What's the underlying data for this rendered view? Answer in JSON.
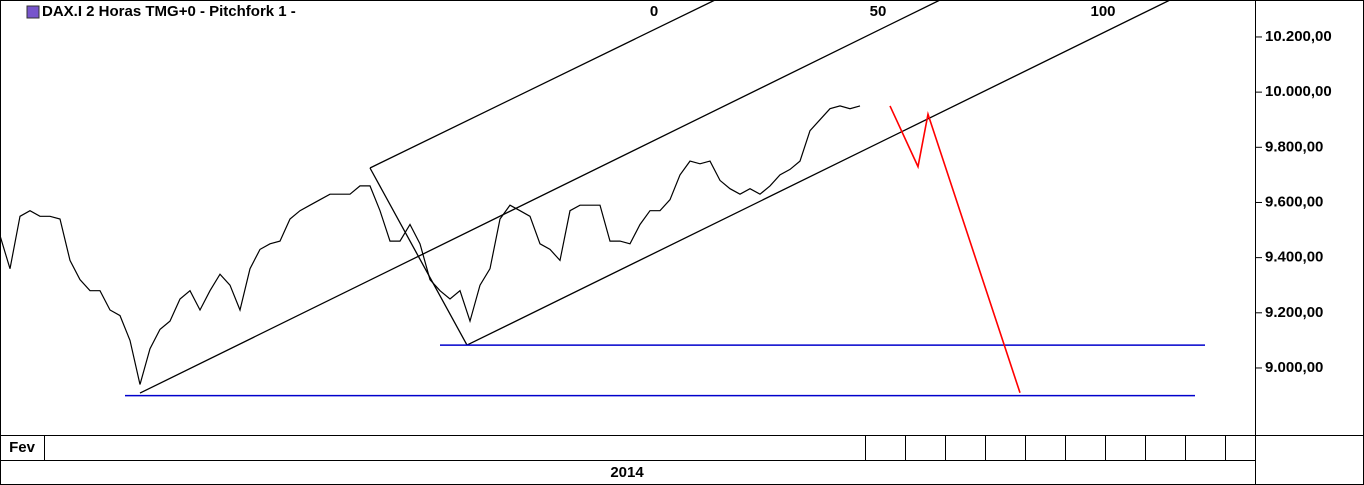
{
  "chart_data": {
    "type": "line",
    "title": "DAX.I 2 Horas TMG+0  -  Pitchfork 1 -",
    "x": [
      0,
      1,
      2,
      3,
      4,
      5,
      6,
      7,
      8,
      9,
      10,
      11,
      12,
      13,
      14,
      15,
      16,
      17,
      18,
      19,
      20,
      21,
      22,
      23,
      24,
      25,
      26,
      27,
      28,
      29,
      30,
      31,
      32,
      33,
      34,
      35,
      36,
      37,
      38,
      39,
      40,
      41,
      42,
      43,
      44,
      45,
      46,
      47,
      48,
      49,
      50,
      51,
      52,
      53,
      54,
      55,
      56,
      57,
      58,
      59,
      60,
      61,
      62,
      63,
      64,
      65,
      66,
      67,
      68,
      69,
      70,
      71,
      72,
      73,
      74,
      75,
      76,
      77,
      78,
      79,
      80,
      81,
      82,
      83,
      84,
      85,
      86
    ],
    "values": [
      9480,
      9360,
      9550,
      9570,
      9550,
      9550,
      9540,
      9390,
      9320,
      9280,
      9280,
      9210,
      9190,
      9100,
      8940,
      9070,
      9140,
      9170,
      9250,
      9280,
      9210,
      9280,
      9340,
      9300,
      9210,
      9360,
      9430,
      9450,
      9460,
      9540,
      9570,
      9590,
      9610,
      9630,
      9630,
      9630,
      9660,
      9660,
      9570,
      9460,
      9460,
      9520,
      9450,
      9320,
      9280,
      9250,
      9280,
      9170,
      9300,
      9360,
      9540,
      9590,
      9570,
      9550,
      9450,
      9430,
      9390,
      9570,
      9590,
      9590,
      9590,
      9460,
      9460,
      9450,
      9520,
      9570,
      9570,
      9610,
      9700,
      9750,
      9740,
      9750,
      9680,
      9650,
      9630,
      9650,
      9630,
      9660,
      9700,
      9720,
      9750,
      9860,
      9900,
      9940,
      9950,
      9940,
      9950
    ],
    "color": "#000000",
    "xlim": [
      0,
      125.5
    ],
    "ylim": [
      8757,
      10334
    ],
    "yticks": [
      {
        "value": 9000,
        "label": "9.000,00"
      },
      {
        "value": 9200,
        "label": "9.200,00"
      },
      {
        "value": 9400,
        "label": "9.400,00"
      },
      {
        "value": 9600,
        "label": "9.600,00"
      },
      {
        "value": 9800,
        "label": "9.800,00"
      },
      {
        "value": 10000,
        "label": "10.000,00"
      },
      {
        "value": 10200,
        "label": "10.200,00"
      }
    ],
    "x_period_label": "Fev",
    "x_year_label": "2014",
    "fan_labels": [
      "0",
      "50",
      "100"
    ],
    "pitchfork": {
      "color": "#000000",
      "segments": [
        [
          [
            37,
            9725
          ],
          [
            71.5,
            10334
          ]
        ],
        [
          [
            14,
            8909
          ],
          [
            94,
            10334
          ]
        ],
        [
          [
            46.7,
            9083
          ],
          [
            117,
            10334
          ]
        ],
        [
          [
            37,
            9725
          ],
          [
            46.7,
            9083
          ]
        ]
      ]
    },
    "levels": {
      "color": "#0000cc",
      "lines": [
        [
          [
            44,
            9083
          ],
          [
            120.5,
            9083
          ]
        ],
        [
          [
            12.5,
            8900
          ],
          [
            119.5,
            8900
          ]
        ]
      ]
    },
    "projection": {
      "color": "#ff0000",
      "points": [
        [
          89,
          9950
        ],
        [
          91.8,
          9730
        ],
        [
          92.8,
          9920
        ],
        [
          102,
          8910
        ]
      ]
    }
  }
}
